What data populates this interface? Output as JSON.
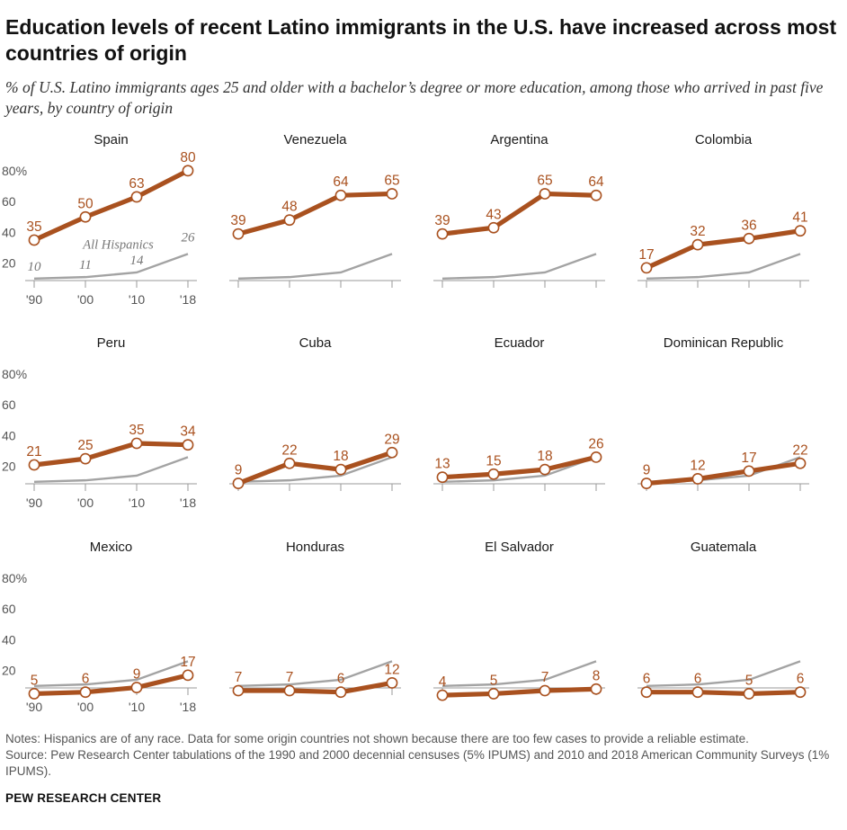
{
  "title": "Education levels of recent Latino immigrants in the U.S. have increased across most countries of origin",
  "subtitle": "% of U.S. Latino immigrants ages 25 and older with a bachelor’s degree or more education, among those who arrived in past five years, by country of origin",
  "notes": "Notes: Hispanics are of any race. Data for some origin countries not shown because there are too few cases to provide a reliable estimate.",
  "source": "Source: Pew Research Center tabulations of the 1990 and 2000 decennial censuses (5% IPUMS) and 2010 and 2018 American Community Surveys (1% IPUMS).",
  "brand": "PEW RESEARCH CENTER",
  "colors": {
    "country": "#a9511f",
    "all_hispanics": "#a3a3a3",
    "axis": "#9a9a9a",
    "label": "#555555"
  },
  "chart_data": {
    "type": "line",
    "x": [
      "'90",
      "'00",
      "'10",
      "'18"
    ],
    "ylim": [
      0,
      90
    ],
    "yticks": [
      "20",
      "40",
      "60",
      "80%"
    ],
    "reference_series": {
      "name": "All Hispanics",
      "values": [
        10,
        11,
        14,
        26
      ]
    },
    "panels": [
      {
        "name": "Spain",
        "values": [
          35,
          50,
          63,
          80
        ]
      },
      {
        "name": "Venezuela",
        "values": [
          39,
          48,
          64,
          65
        ]
      },
      {
        "name": "Argentina",
        "values": [
          39,
          43,
          65,
          64
        ]
      },
      {
        "name": "Colombia",
        "values": [
          17,
          32,
          36,
          41
        ]
      },
      {
        "name": "Peru",
        "values": [
          21,
          25,
          35,
          34
        ]
      },
      {
        "name": "Cuba",
        "values": [
          9,
          22,
          18,
          29
        ]
      },
      {
        "name": "Ecuador",
        "values": [
          13,
          15,
          18,
          26
        ]
      },
      {
        "name": "Dominican Republic",
        "values": [
          9,
          12,
          17,
          22
        ]
      },
      {
        "name": "Mexico",
        "values": [
          5,
          6,
          9,
          17
        ]
      },
      {
        "name": "Honduras",
        "values": [
          7,
          7,
          6,
          12
        ]
      },
      {
        "name": "El Salvador",
        "values": [
          4,
          5,
          7,
          8
        ]
      },
      {
        "name": "Guatemala",
        "values": [
          6,
          6,
          5,
          6
        ]
      }
    ]
  }
}
